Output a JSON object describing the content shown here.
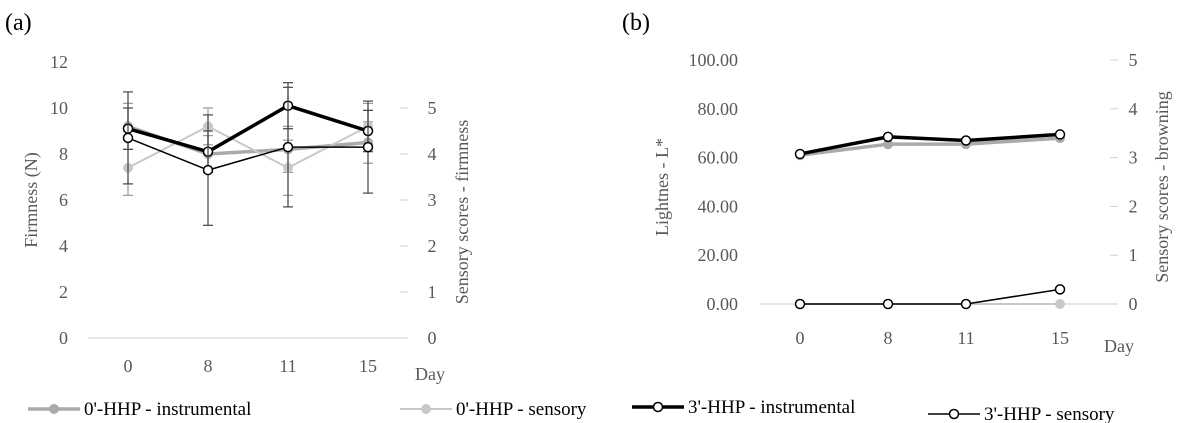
{
  "panels": [
    {
      "label": "(a)"
    },
    {
      "label": "(b)"
    }
  ],
  "legend": {
    "items": [
      {
        "text": "0'-HHP - instrumental",
        "color": "#aaaaaa",
        "marker": "filled"
      },
      {
        "text": "0'-HHP - sensory",
        "color": "#c8c8c8",
        "marker": "filled"
      },
      {
        "text": "3'-HHP - instrumental",
        "color": "#000000",
        "marker": "open"
      },
      {
        "text": "3'-HHP - sensory",
        "color": "#000000",
        "marker": "open"
      }
    ]
  },
  "chart_data": [
    {
      "type": "line",
      "panel": "(a)",
      "categories": [
        "0",
        "8",
        "11",
        "15"
      ],
      "xlabel": "Day",
      "ylabel": "Firmness  (N)",
      "y2label": "Sensory  scores - firmness",
      "ylim": [
        0,
        12
      ],
      "yticks": [
        "0",
        "2",
        "4",
        "6",
        "8",
        "10",
        "12"
      ],
      "y2lim": [
        0,
        6
      ],
      "y2ticks": [
        "0",
        "1",
        "2",
        "3",
        "4",
        "5"
      ],
      "grid": false,
      "legend_position": "bottom",
      "series": [
        {
          "name": "0'-HHP - instrumental",
          "axis": "left",
          "color": "#aaaaaa",
          "width": 3.5,
          "marker": "filled",
          "values": [
            9.2,
            8.0,
            8.2,
            8.5
          ],
          "error": [
            1.0,
            0.8,
            1.0,
            0.9
          ]
        },
        {
          "name": "0'-HHP - sensory",
          "axis": "right",
          "color": "#c8c8c8",
          "width": 2,
          "marker": "filled",
          "values": [
            3.7,
            4.6,
            3.7,
            4.6
          ],
          "error": [
            0.6,
            0.4,
            0.6,
            0.5
          ]
        },
        {
          "name": "3'-HHP - instrumental",
          "axis": "left",
          "color": "#000000",
          "width": 3.5,
          "marker": "open",
          "values": [
            9.1,
            8.1,
            10.1,
            9.0
          ],
          "error": [
            0.9,
            0.9,
            1.0,
            0.9
          ]
        },
        {
          "name": "3'-HHP - sensory",
          "axis": "right",
          "color": "#000000",
          "width": 1.5,
          "marker": "open",
          "values": [
            4.35,
            3.65,
            4.15,
            4.15
          ],
          "error": [
            1.0,
            1.2,
            1.3,
            1.0
          ]
        }
      ]
    },
    {
      "type": "line",
      "panel": "(b)",
      "categories": [
        "0",
        "8",
        "11",
        "15"
      ],
      "xlabel": "Day",
      "ylabel": "Lightnes  - L*",
      "y2label": "Sensory  scores - browning",
      "ylim": [
        0,
        100
      ],
      "yticks": [
        "0.00",
        "20.00",
        "40.00",
        "60.00",
        "80.00",
        "100.00"
      ],
      "y2lim": [
        0,
        5
      ],
      "y2ticks": [
        "0",
        "1",
        "2",
        "3",
        "4",
        "5"
      ],
      "grid": false,
      "legend_position": "bottom",
      "series": [
        {
          "name": "0'-HHP - instrumental",
          "axis": "left",
          "color": "#aaaaaa",
          "width": 3.5,
          "marker": "filled",
          "values": [
            61.0,
            65.5,
            65.5,
            68.0
          ]
        },
        {
          "name": "0'-HHP - sensory",
          "axis": "right",
          "color": "#c8c8c8",
          "width": 2,
          "marker": "filled",
          "values": [
            0,
            0,
            0,
            0
          ]
        },
        {
          "name": "3'-HHP - instrumental",
          "axis": "left",
          "color": "#000000",
          "width": 3.5,
          "marker": "open",
          "values": [
            61.5,
            68.5,
            67.0,
            69.5
          ]
        },
        {
          "name": "3'-HHP - sensory",
          "axis": "right",
          "color": "#000000",
          "width": 1.5,
          "marker": "open",
          "values": [
            0,
            0,
            0,
            0.3
          ]
        }
      ]
    }
  ]
}
